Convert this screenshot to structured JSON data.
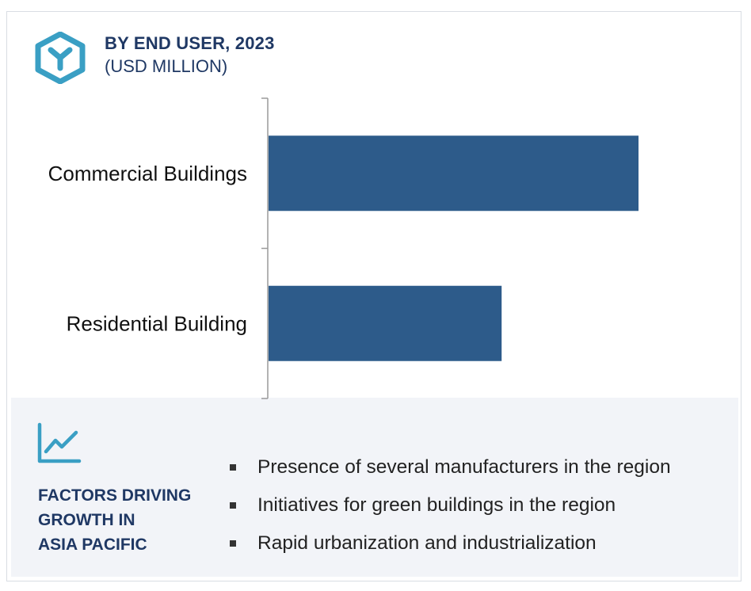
{
  "header": {
    "title": "BY END USER, 2023",
    "subtitle": "(USD MILLION)",
    "logo_icon": "hexagon-y-logo-icon",
    "accent_color": "#3a9fc4"
  },
  "chart_data": {
    "type": "bar",
    "orientation": "horizontal",
    "title": "BY END USER, 2023",
    "subtitle": "(USD MILLION)",
    "categories": [
      "Commercial Buildings",
      "Residential Building"
    ],
    "values": [
      100,
      63
    ],
    "bar_color": "#2d5b8a",
    "xlim": [
      0,
      100
    ],
    "grid": false,
    "value_axis_visible": false
  },
  "factors": {
    "icon": "line-chart-trend-icon",
    "title_lines": [
      "FACTORS DRIVING",
      "GROWTH IN",
      "ASIA PACIFIC"
    ],
    "items": [
      "Presence of several manufacturers in the region",
      "Initiatives for green buildings in the region",
      "Rapid urbanization and industrialization"
    ]
  }
}
